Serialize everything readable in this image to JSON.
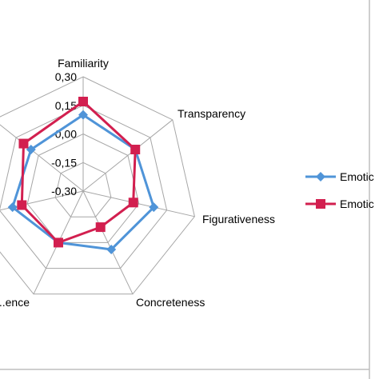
{
  "colors": {
    "series1": "#4f94d8",
    "series2": "#d21f4f",
    "grid": "#a6a6a6",
    "frame": "#bfbfbf"
  },
  "chart_data": {
    "type": "radar",
    "title": "",
    "axes": [
      "Familiarity",
      "Transparency",
      "Figurativeness",
      "Concreteness",
      "...ence",
      "",
      ""
    ],
    "rlim": [
      -0.3,
      0.3
    ],
    "ticks": [
      "-0,30",
      "-0,15",
      "0,00",
      "0,15",
      "0,30"
    ],
    "grid": true,
    "legend_position": "right",
    "series": [
      {
        "name": "Emotic",
        "marker": "diamond",
        "values": [
          0.1,
          0.05,
          0.08,
          0.04,
          0.0,
          0.08,
          0.05
        ]
      },
      {
        "name": "Emotic",
        "marker": "square",
        "values": [
          0.17,
          0.05,
          -0.03,
          -0.09,
          0.0,
          0.03,
          0.1
        ]
      }
    ]
  }
}
